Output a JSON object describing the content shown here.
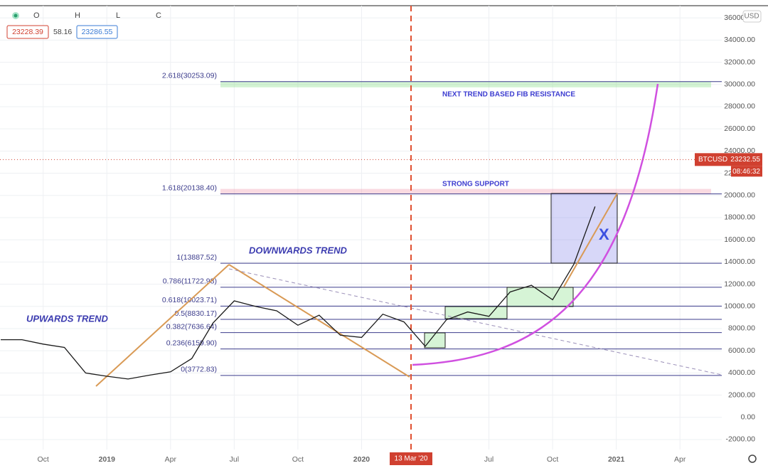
{
  "chart_data": {
    "type": "line",
    "ohlc_fields": [
      "O",
      "H",
      "L",
      "C"
    ],
    "ohlc_values": [
      23228.39,
      58.16,
      23286.55
    ],
    "currency": "USD",
    "categories": [
      null,
      null,
      "Oct",
      null,
      null,
      "2019",
      null,
      null,
      "Apr",
      null,
      null,
      "Jul",
      null,
      null,
      "Oct",
      null,
      null,
      "2020",
      null,
      null,
      null,
      null,
      null,
      "Jul",
      null,
      null,
      "Oct",
      null,
      null,
      "2021",
      null,
      null,
      "Apr",
      null,
      null
    ],
    "series": [
      {
        "name": "BTCUSD",
        "color": "#1a1a1a",
        "values": [
          7000,
          7000,
          6600,
          6300,
          4000,
          3700,
          3450,
          3800,
          4100,
          5300,
          8500,
          10500,
          10000,
          9600,
          8300,
          9200,
          7400,
          7200,
          9300,
          8600,
          6400,
          8800,
          9500,
          9100,
          11300,
          11900,
          10600,
          13800,
          19000,
          null,
          null,
          null,
          null,
          null,
          null
        ]
      }
    ],
    "last_price": 23232.55,
    "countdown": "08:46:32",
    "crosshair_label": "13 Mar '20",
    "ylim": [
      -2900,
      37100
    ],
    "yticks": [
      {
        "value": -2000,
        "label": "-2000.00"
      },
      {
        "value": 0,
        "label": "0.00"
      },
      {
        "value": 2000,
        "label": "2000.00"
      },
      {
        "value": 4000,
        "label": "4000.00"
      },
      {
        "value": 6000,
        "label": "6000.00"
      },
      {
        "value": 8000,
        "label": "8000.00"
      },
      {
        "value": 10000,
        "label": "10000.00"
      },
      {
        "value": 12000,
        "label": "12000.00"
      },
      {
        "value": 14000,
        "label": "14000.00"
      },
      {
        "value": 16000,
        "label": "16000.00"
      },
      {
        "value": 18000,
        "label": "18000.00"
      },
      {
        "value": 20000,
        "label": "20000.00"
      },
      {
        "value": 22000,
        "label": "22000.00"
      },
      {
        "value": 24000,
        "label": "24000.00"
      },
      {
        "value": 26000,
        "label": "26000.00"
      },
      {
        "value": 28000,
        "label": "28000.00"
      },
      {
        "value": 30000,
        "label": "30000.00"
      },
      {
        "value": 32000,
        "label": "32000.00"
      },
      {
        "value": 34000,
        "label": "34000.00"
      },
      {
        "value": 36000,
        "label": "36000.00"
      }
    ],
    "grid": true,
    "fib_levels": [
      {
        "label": "2.618(30253.09)",
        "value": 30253.09
      },
      {
        "label": "1.618(20138.40)",
        "value": 20138.4
      },
      {
        "label": "1(13887.52)",
        "value": 13887.52
      },
      {
        "label": "0.786(11722.98)",
        "value": 11722.98
      },
      {
        "label": "0.618(10023.71)",
        "value": 10023.71
      },
      {
        "label": "0.5(8830.17)",
        "value": 8830.17
      },
      {
        "label": "0.382(7636.64)",
        "value": 7636.64
      },
      {
        "label": "0.236(6159.90)",
        "value": 6159.9
      },
      {
        "label": "0(3772.83)",
        "value": 3772.83
      }
    ],
    "annotations": {
      "upwards": "UPWARDS TREND",
      "downwards": "DOWNWARDS TREND",
      "resistance": "NEXT TREND BASED FIB RESISTANCE",
      "support": "STRONG SUPPORT",
      "marker": "X"
    }
  }
}
